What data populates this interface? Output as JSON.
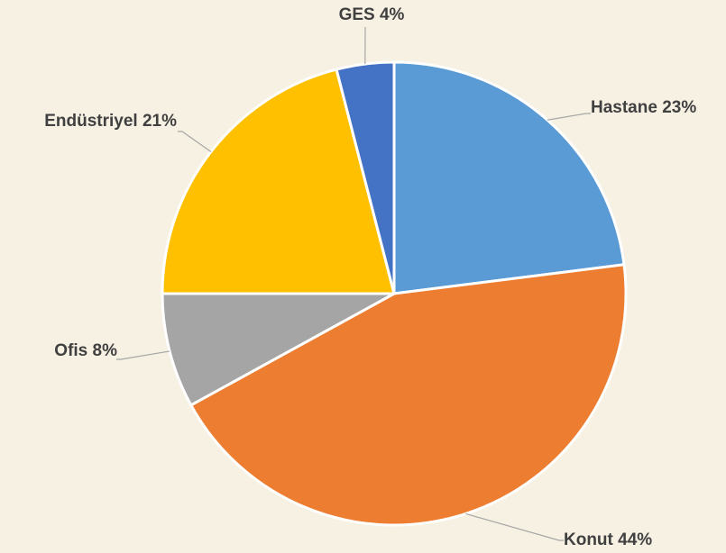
{
  "chart_data": {
    "type": "pie",
    "categories": [
      "Hastane",
      "Konut",
      "Ofis",
      "Endüstriyel",
      "GES"
    ],
    "values": [
      23,
      44,
      8,
      21,
      4
    ],
    "value_labels": [
      "23%",
      "44%",
      "8%",
      "21%",
      "4%"
    ],
    "colors": [
      "#5b9bd5",
      "#ed7d31",
      "#a5a5a5",
      "#ffc000",
      "#4472c4"
    ]
  }
}
